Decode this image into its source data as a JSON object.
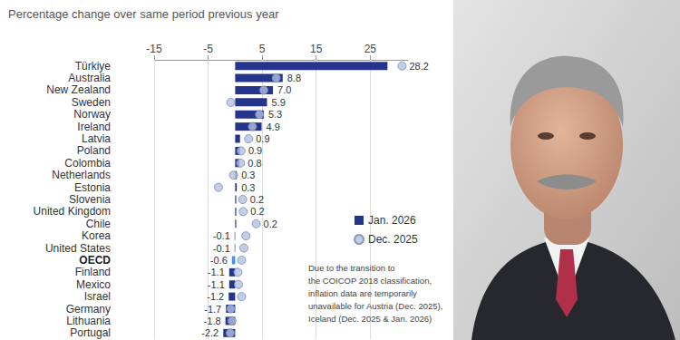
{
  "chart_data": {
    "type": "bar",
    "orientation": "horizontal",
    "title": "Percentage change over same period previous year",
    "categories": [
      "Türkiye",
      "Australia",
      "New Zealand",
      "Sweden",
      "Norway",
      "Ireland",
      "Latvia",
      "Poland",
      "Colombia",
      "Netherlands",
      "Estonia",
      "Slovenia",
      "United Kingdom",
      "Chile",
      "Korea",
      "United States",
      "OECD",
      "Finland",
      "Mexico",
      "Israel",
      "Germany",
      "Lithuania",
      "Portugal"
    ],
    "series": [
      {
        "name": "Jan. 2026",
        "type": "bar",
        "color": "#25358c",
        "colors": [
          "#25358c",
          "#25358c",
          "#25358c",
          "#25358c",
          "#25358c",
          "#25358c",
          "#25358c",
          "#25358c",
          "#25358c",
          "#25358c",
          "#25358c",
          "#25358c",
          "#25358c",
          "#25358c",
          "#25358c",
          "#25358c",
          "#4a90d9",
          "#25358c",
          "#25358c",
          "#25358c",
          "#25358c",
          "#25358c",
          "#25358c"
        ],
        "data_labels": true,
        "values": [
          28.2,
          8.8,
          7.0,
          5.9,
          5.3,
          4.9,
          0.9,
          0.9,
          0.8,
          0.3,
          0.3,
          0.2,
          0.2,
          0.2,
          -0.1,
          -0.1,
          -0.6,
          -1.1,
          -1.1,
          -1.2,
          -1.7,
          -1.8,
          -2.2
        ],
        "value_labels": [
          "28.2",
          "8.8",
          "7.0",
          "5.9",
          "5.3",
          "4.9",
          "0.9",
          "0.9",
          "0.8",
          "0.3",
          "0.3",
          "0.2",
          "0.2",
          "0.2",
          "-0.1",
          "-0.1",
          "-0.6",
          "-1.1",
          "-1.1",
          "-1.2",
          "-1.7",
          "-1.8",
          "-2.2"
        ]
      },
      {
        "name": "Dec. 2025",
        "type": "scatter",
        "marker": "circle",
        "color": "#b3c1e0",
        "values": [
          30.9,
          7.6,
          5.3,
          -0.8,
          4.5,
          3.2,
          2.5,
          1.1,
          1.0,
          -0.3,
          -3.1,
          1.4,
          1.5,
          3.9,
          2.0,
          1.6,
          1.2,
          0.5,
          0.6,
          1.2,
          -0.8,
          -0.6,
          -0.9
        ]
      }
    ],
    "xlim": [
      -15,
      32
    ],
    "xticks": [
      -15,
      -5,
      5,
      15,
      25
    ],
    "grid": true,
    "legend": "right",
    "annotation": "Due to the transition to\nthe COICOP 2018 classification,\ninflation data are temporarily\nunavailable for Austria (Dec. 2025),\nIceland (Dec. 2025 & Jan. 2026)"
  }
}
